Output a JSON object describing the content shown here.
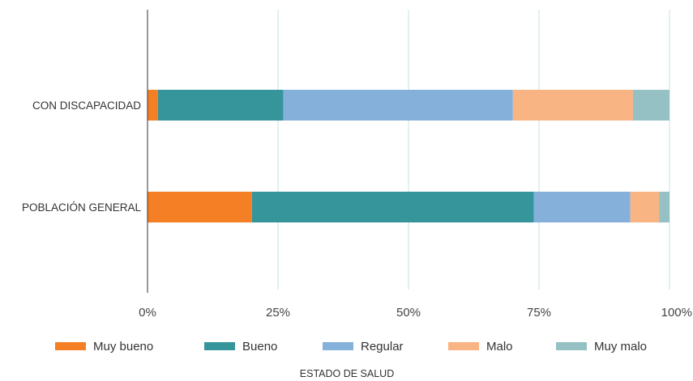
{
  "chart_data": {
    "type": "bar",
    "orientation": "horizontal",
    "stacked": true,
    "categories": [
      "CON DISCAPACIDAD",
      "POBLACIÓN GENERAL"
    ],
    "series": [
      {
        "name": "Muy bueno",
        "color": "#f47f24",
        "values": [
          2,
          20
        ]
      },
      {
        "name": "Bueno",
        "color": "#35959b",
        "values": [
          24,
          54
        ]
      },
      {
        "name": "Regular",
        "color": "#85b0da",
        "values": [
          44,
          18.5
        ]
      },
      {
        "name": "Malo",
        "color": "#f9b483",
        "values": [
          23,
          5.5
        ]
      },
      {
        "name": "Muy malo",
        "color": "#95c1c4",
        "values": [
          7,
          2
        ]
      }
    ],
    "xticks": [
      "0%",
      "25%",
      "50%",
      "75%",
      "100%"
    ],
    "xlim": [
      0,
      100
    ],
    "xlabel": "ESTADO DE SALUD",
    "ylabel": "",
    "title": "",
    "grid": true,
    "legend_position": "bottom"
  }
}
